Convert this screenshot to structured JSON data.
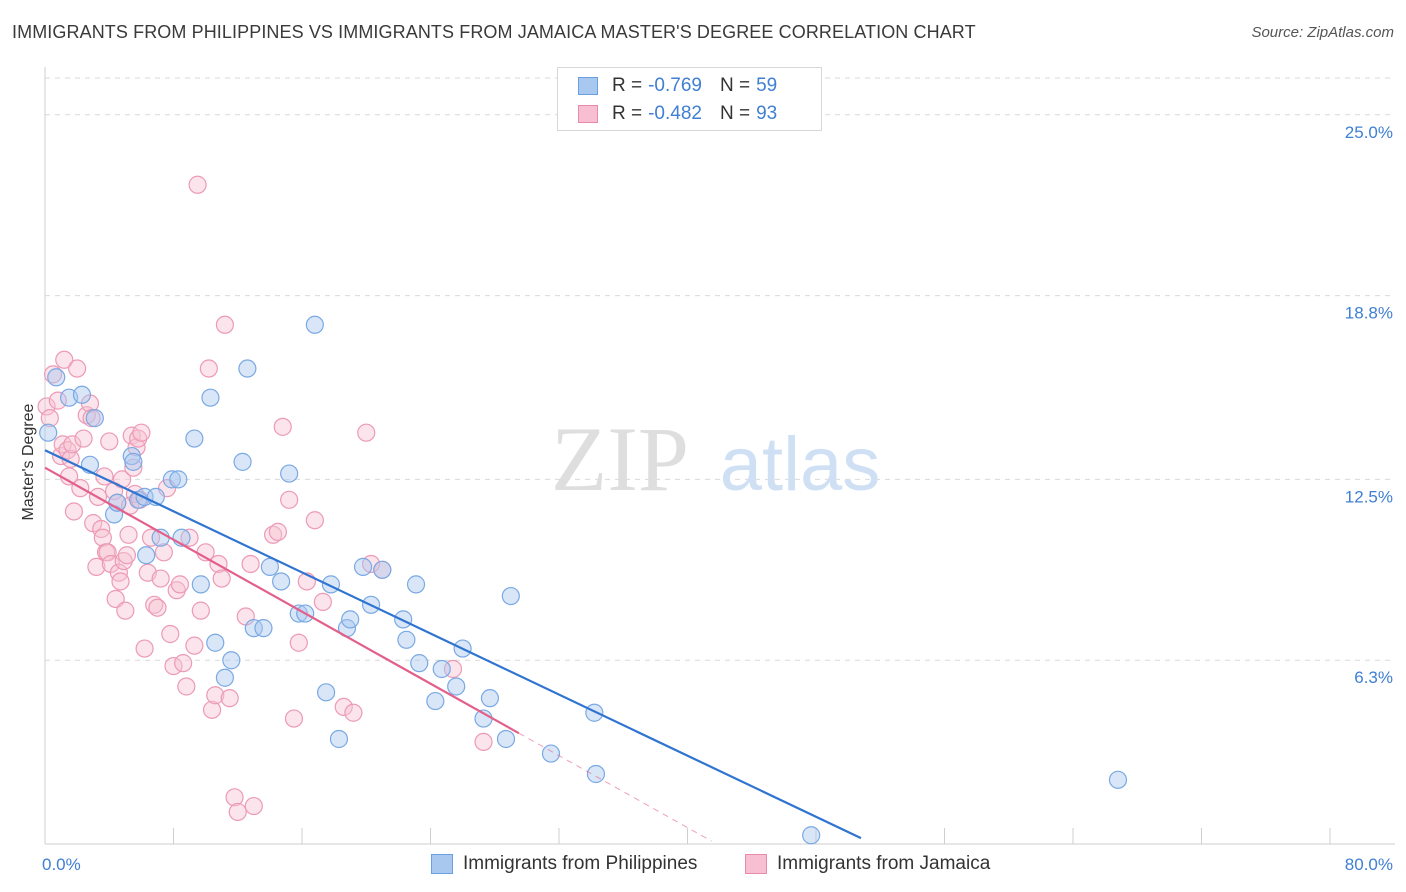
{
  "header": {
    "title": "IMMIGRANTS FROM PHILIPPINES VS IMMIGRANTS FROM JAMAICA MASTER'S DEGREE CORRELATION CHART",
    "source": "Source: ZipAtlas.com"
  },
  "watermark": {
    "zip": "ZIP",
    "atlas": "atlas"
  },
  "legend": {
    "rows": [
      {
        "r_label": "R =",
        "r_value": "-0.769",
        "n_label": "N =",
        "n_value": "59",
        "color": "#a9c8f0",
        "border": "#6a9fe0"
      },
      {
        "r_label": "R =",
        "r_value": "-0.482",
        "n_label": "N =",
        "n_value": "93",
        "color": "#f7bfd1",
        "border": "#e98aab"
      }
    ]
  },
  "colors": {
    "philippines_fill": "#a9c8f0",
    "philippines_stroke": "#7aa9e3",
    "philippines_line": "#2f74d0",
    "jamaica_fill": "#f7c3d3",
    "jamaica_stroke": "#ec9ab6",
    "jamaica_line": "#e2608a",
    "grid": "#d9d9d9",
    "tick_text": "#3f7fd4"
  },
  "chart_data": {
    "type": "scatter",
    "title": "IMMIGRANTS FROM PHILIPPINES VS IMMIGRANTS FROM JAMAICA MASTER'S DEGREE CORRELATION CHART",
    "xlabel": "",
    "ylabel": "Master's Degree",
    "xlim": [
      0,
      80
    ],
    "ylim": [
      0,
      26.5
    ],
    "x_tick_labels": [
      "0.0%",
      "80.0%"
    ],
    "y_ticks": [
      6.3,
      12.5,
      18.8,
      25.0
    ],
    "y_tick_labels": [
      "6.3%",
      "12.5%",
      "18.8%",
      "25.0%"
    ],
    "grid": "horizontal dashed",
    "legend_placement": "bottom",
    "series": [
      {
        "name": "Immigrants from Philippines",
        "trend": {
          "x": [
            0,
            50.8
          ],
          "y": [
            13.5,
            0.2
          ]
        },
        "points": [
          [
            0.2,
            14.1
          ],
          [
            0.7,
            16.0
          ],
          [
            1.5,
            15.3
          ],
          [
            2.3,
            15.4
          ],
          [
            2.8,
            13.0
          ],
          [
            3.1,
            14.6
          ],
          [
            4.3,
            11.3
          ],
          [
            4.5,
            11.7
          ],
          [
            5.4,
            13.3
          ],
          [
            5.5,
            13.1
          ],
          [
            5.8,
            11.8
          ],
          [
            6.2,
            11.9
          ],
          [
            6.3,
            9.9
          ],
          [
            6.9,
            11.9
          ],
          [
            7.2,
            10.5
          ],
          [
            7.9,
            12.5
          ],
          [
            8.3,
            12.5
          ],
          [
            8.5,
            10.5
          ],
          [
            9.3,
            13.9
          ],
          [
            9.7,
            8.9
          ],
          [
            10.3,
            15.3
          ],
          [
            10.6,
            6.9
          ],
          [
            11.2,
            5.7
          ],
          [
            11.6,
            6.3
          ],
          [
            12.3,
            13.1
          ],
          [
            12.6,
            16.3
          ],
          [
            13.0,
            7.4
          ],
          [
            13.6,
            7.4
          ],
          [
            14.0,
            9.5
          ],
          [
            14.7,
            9.0
          ],
          [
            15.2,
            12.7
          ],
          [
            15.8,
            7.9
          ],
          [
            16.2,
            7.9
          ],
          [
            16.8,
            17.8
          ],
          [
            17.5,
            5.2
          ],
          [
            17.8,
            8.9
          ],
          [
            18.3,
            3.6
          ],
          [
            18.8,
            7.4
          ],
          [
            19.0,
            7.7
          ],
          [
            19.8,
            9.5
          ],
          [
            20.3,
            8.2
          ],
          [
            21.0,
            9.4
          ],
          [
            22.3,
            7.7
          ],
          [
            22.5,
            7.0
          ],
          [
            23.1,
            8.9
          ],
          [
            23.3,
            6.2
          ],
          [
            24.3,
            4.9
          ],
          [
            24.7,
            6.0
          ],
          [
            25.6,
            5.4
          ],
          [
            26.0,
            6.7
          ],
          [
            27.3,
            4.3
          ],
          [
            27.7,
            5.0
          ],
          [
            28.7,
            3.6
          ],
          [
            29.0,
            8.5
          ],
          [
            31.5,
            3.1
          ],
          [
            34.2,
            4.5
          ],
          [
            34.3,
            2.4
          ],
          [
            66.8,
            2.2
          ],
          [
            47.7,
            0.3
          ]
        ]
      },
      {
        "name": "Immigrants from Jamaica",
        "trend": {
          "x": [
            0,
            29.5
          ],
          "y": [
            12.9,
            3.8
          ]
        },
        "trend_ext": {
          "x": [
            29.5,
            41.5
          ],
          "y": [
            3.8,
            0.1
          ]
        },
        "points": [
          [
            0.1,
            15.0
          ],
          [
            0.3,
            14.6
          ],
          [
            0.5,
            16.1
          ],
          [
            0.8,
            15.2
          ],
          [
            1.0,
            13.3
          ],
          [
            1.1,
            13.7
          ],
          [
            1.2,
            16.6
          ],
          [
            1.4,
            13.5
          ],
          [
            1.5,
            12.6
          ],
          [
            1.6,
            13.2
          ],
          [
            1.7,
            13.7
          ],
          [
            1.8,
            11.4
          ],
          [
            2.0,
            16.3
          ],
          [
            2.2,
            12.2
          ],
          [
            2.4,
            13.9
          ],
          [
            2.6,
            14.7
          ],
          [
            2.8,
            15.1
          ],
          [
            2.9,
            14.6
          ],
          [
            3.0,
            11.0
          ],
          [
            3.2,
            9.5
          ],
          [
            3.3,
            11.9
          ],
          [
            3.5,
            10.8
          ],
          [
            3.6,
            10.5
          ],
          [
            3.7,
            12.6
          ],
          [
            3.8,
            10.0
          ],
          [
            3.9,
            10.0
          ],
          [
            4.0,
            13.8
          ],
          [
            4.1,
            9.6
          ],
          [
            4.3,
            12.1
          ],
          [
            4.4,
            8.4
          ],
          [
            4.5,
            11.7
          ],
          [
            4.6,
            9.3
          ],
          [
            4.7,
            9.0
          ],
          [
            4.8,
            12.5
          ],
          [
            4.9,
            9.7
          ],
          [
            5.0,
            8.0
          ],
          [
            5.1,
            9.9
          ],
          [
            5.2,
            10.6
          ],
          [
            5.3,
            11.6
          ],
          [
            5.4,
            14.0
          ],
          [
            5.5,
            12.9
          ],
          [
            5.6,
            12.0
          ],
          [
            5.7,
            13.6
          ],
          [
            5.8,
            13.9
          ],
          [
            5.9,
            11.8
          ],
          [
            6.0,
            14.1
          ],
          [
            6.2,
            6.7
          ],
          [
            6.4,
            9.3
          ],
          [
            6.6,
            10.5
          ],
          [
            6.8,
            8.2
          ],
          [
            7.0,
            8.1
          ],
          [
            7.2,
            9.1
          ],
          [
            7.4,
            10.0
          ],
          [
            7.6,
            12.2
          ],
          [
            7.8,
            7.2
          ],
          [
            8.0,
            6.1
          ],
          [
            8.2,
            8.7
          ],
          [
            8.4,
            8.9
          ],
          [
            8.6,
            6.2
          ],
          [
            8.8,
            5.4
          ],
          [
            9.0,
            10.5
          ],
          [
            9.3,
            6.8
          ],
          [
            9.5,
            22.6
          ],
          [
            9.7,
            8.0
          ],
          [
            10.0,
            10.0
          ],
          [
            10.2,
            16.3
          ],
          [
            10.4,
            4.6
          ],
          [
            10.6,
            5.1
          ],
          [
            10.8,
            9.6
          ],
          [
            11.0,
            9.1
          ],
          [
            11.2,
            17.8
          ],
          [
            11.5,
            5.0
          ],
          [
            11.8,
            1.6
          ],
          [
            12.0,
            1.1
          ],
          [
            12.5,
            7.8
          ],
          [
            12.8,
            9.6
          ],
          [
            13.0,
            1.3
          ],
          [
            14.2,
            10.6
          ],
          [
            14.5,
            10.7
          ],
          [
            14.8,
            14.3
          ],
          [
            15.2,
            11.8
          ],
          [
            15.5,
            4.3
          ],
          [
            15.8,
            6.9
          ],
          [
            16.3,
            9.0
          ],
          [
            16.8,
            11.1
          ],
          [
            17.3,
            8.3
          ],
          [
            18.6,
            4.7
          ],
          [
            19.2,
            4.5
          ],
          [
            20.0,
            14.1
          ],
          [
            20.3,
            9.6
          ],
          [
            21.0,
            9.4
          ],
          [
            25.4,
            6.0
          ],
          [
            27.3,
            3.5
          ]
        ]
      }
    ]
  },
  "bottom_legend": {
    "philippines": "Immigrants from Philippines",
    "jamaica": "Immigrants from Jamaica"
  }
}
